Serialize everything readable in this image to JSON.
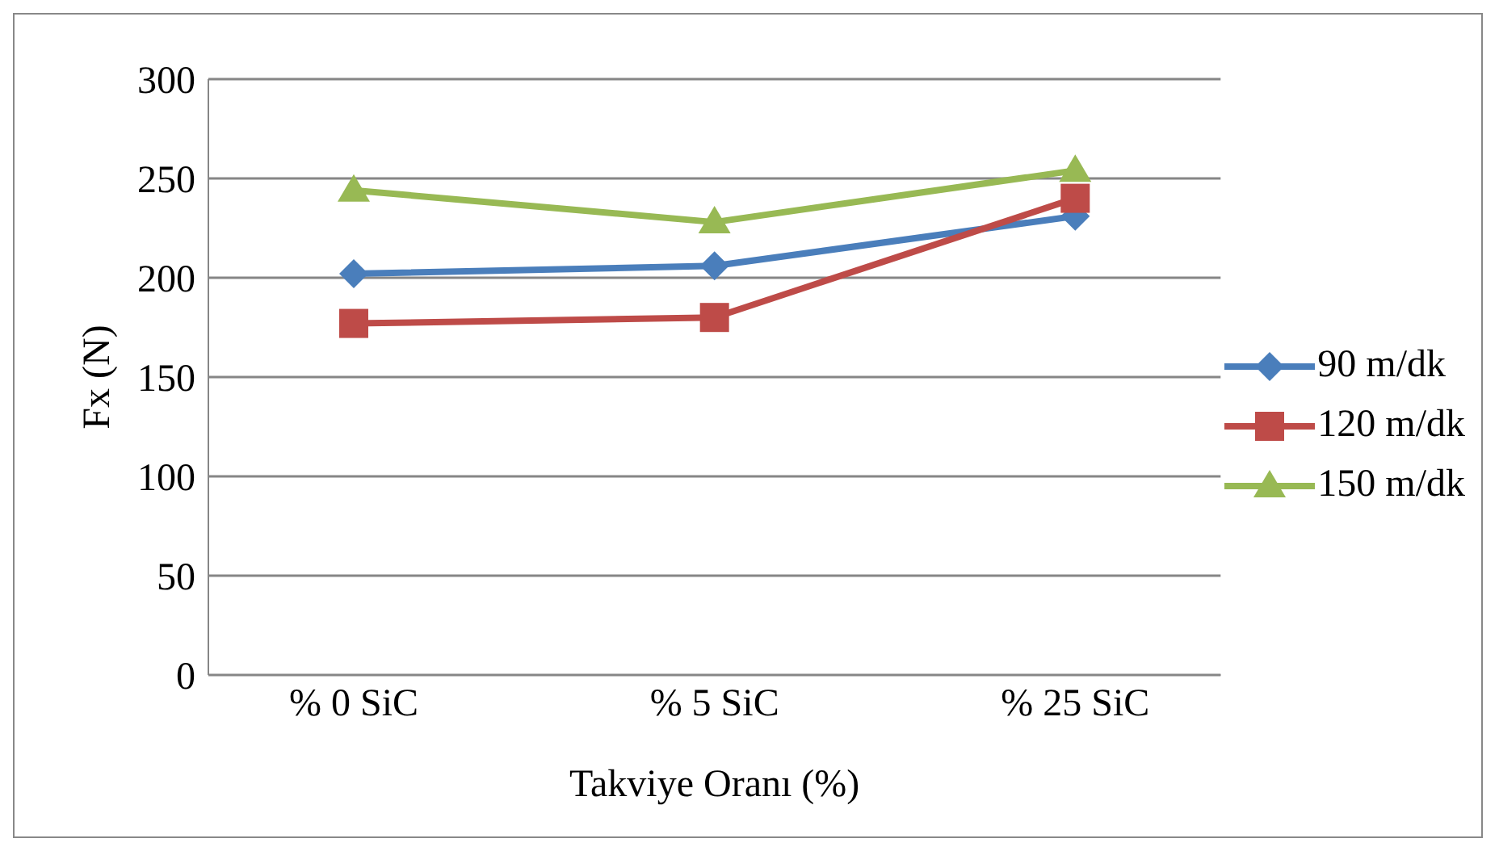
{
  "chart_data": {
    "type": "line",
    "xlabel": "Takviye Oranı (%)",
    "ylabel": "Fx  (N)",
    "categories": [
      "% 0 SiC",
      "% 5 SiC",
      "% 25 SiC"
    ],
    "series": [
      {
        "name": "90 m/dk",
        "color": "#4a7ebb",
        "marker": "diamond",
        "values": [
          202,
          206,
          231
        ]
      },
      {
        "name": "120 m/dk",
        "color": "#be4b48",
        "marker": "square",
        "values": [
          177,
          180,
          240
        ]
      },
      {
        "name": "150 m/dk",
        "color": "#98b954",
        "marker": "triangle",
        "values": [
          244,
          228,
          254
        ]
      }
    ],
    "ylim": [
      0,
      300
    ],
    "yticks": [
      0,
      50,
      100,
      150,
      200,
      250,
      300
    ],
    "grid": "y",
    "legend": "right"
  }
}
